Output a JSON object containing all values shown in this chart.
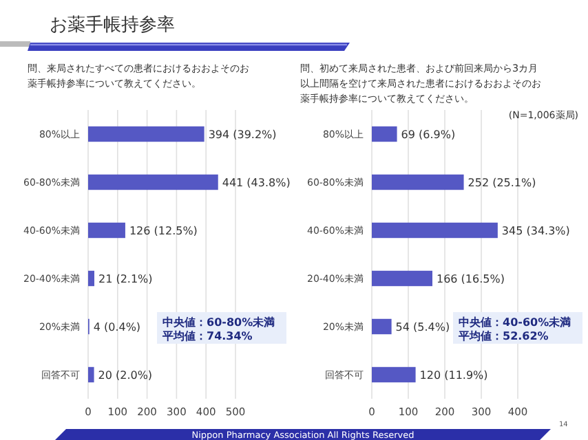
{
  "chart_data": [
    {
      "type": "bar",
      "orientation": "horizontal",
      "title": "お薬手帳持参率",
      "subtitle": "問、来局されたすべての患者におけるおおよそのお薬手帳持参率について教えてください。",
      "categories": [
        "80%以上",
        "60-80%未満",
        "40-60%未満",
        "20-40%未満",
        "20%未満",
        "回答不可"
      ],
      "values": [
        394,
        441,
        126,
        21,
        4,
        20
      ],
      "color": "#5558c4",
      "value_labels": [
        "394 (39.2%)",
        "441 (43.8%)",
        "126 (12.5%)",
        "21 (2.1%)",
        "4 (0.4%)",
        "20 (2.0%)"
      ],
      "xlim": [
        0,
        500
      ],
      "xticks": [
        0,
        100,
        200,
        300,
        400,
        500
      ],
      "grid": "x",
      "annotations": [
        "中央値：60-80%未満",
        "平均値：74.34%"
      ]
    },
    {
      "type": "bar",
      "orientation": "horizontal",
      "subtitle": "問、初めて来局された患者、および前回来局から3カ月以上間隔を空けて来局された患者におけるおおよそのお薬手帳持参率について教えてください。",
      "categories": [
        "80%以上",
        "60-80%未満",
        "40-60%未満",
        "20-40%未満",
        "20%未満",
        "回答不可"
      ],
      "values": [
        69,
        252,
        345,
        166,
        54,
        120
      ],
      "color": "#5558c4",
      "value_labels": [
        "69 (6.9%)",
        "252 (25.1%)",
        "345 (34.3%)",
        "166 (16.5%)",
        "54 (5.4%)",
        "120 (11.9%)"
      ],
      "xlim": [
        0,
        400
      ],
      "xticks": [
        0,
        100,
        200,
        300,
        400
      ],
      "grid": "x",
      "annotations": [
        "(N=1,006薬局)",
        "中央値：40-60%未満",
        "平均値：52.62%",
        "Nippon Pharmacy Association All Rights Reserved",
        "14"
      ]
    }
  ]
}
